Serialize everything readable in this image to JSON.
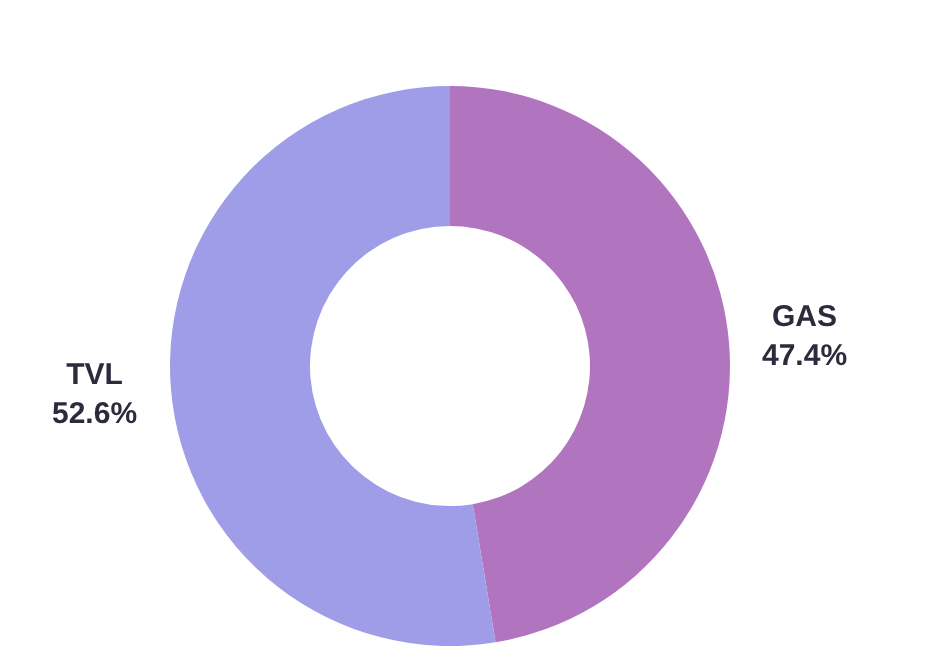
{
  "chart_data": {
    "type": "donut",
    "categories": [
      "GAS",
      "TVL"
    ],
    "values": [
      47.4,
      52.6
    ],
    "colors": [
      "#b174be",
      "#9f9de7"
    ],
    "value_labels": [
      "47.4%",
      "52.6%"
    ],
    "legend": false
  }
}
